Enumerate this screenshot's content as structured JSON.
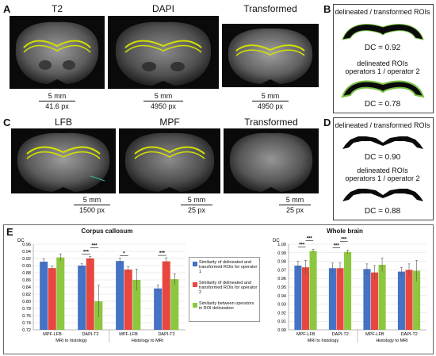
{
  "panels": {
    "A": {
      "label": "A",
      "images": [
        {
          "title": "T2",
          "scale_mm": "5 mm",
          "scale_px": "41.6 px"
        },
        {
          "title": "DAPI",
          "scale_mm": "5 mm",
          "scale_px": "4950 px"
        },
        {
          "title": "Transformed",
          "scale_mm": "5 mm",
          "scale_px": "4950 px"
        }
      ]
    },
    "B": {
      "label": "B",
      "text1": "delineated / transformed ROIs",
      "dc1": "DC = 0.92",
      "text2a": "delineated ROIs",
      "text2b": "operators 1 / operator 2",
      "dc2": "DC = 0.78"
    },
    "C": {
      "label": "C",
      "images": [
        {
          "title": "LFB",
          "scale_mm": "5 mm",
          "scale_px": "1500 px"
        },
        {
          "title": "MPF",
          "scale_mm": "5 mm",
          "scale_px": "25 px"
        },
        {
          "title": "Transformed",
          "scale_mm": "5 mm",
          "scale_px": "25 px"
        }
      ]
    },
    "D": {
      "label": "D",
      "text1": "delineated / transformed ROIs",
      "dc1": "DC = 0.90",
      "text2a": "delineated ROIs",
      "text2b": "operators 1 / operator 2",
      "dc2": "DC = 0.88"
    },
    "E": {
      "label": "E",
      "legend": [
        {
          "text": "Similarity of delineated and transformed ROIs for operator 1",
          "color": "#4472c4"
        },
        {
          "text": "Similarity of delineated and transformed ROIs for operator 2",
          "color": "#e8473f"
        },
        {
          "text": "Similarity between operators in ROI delineation",
          "color": "#8dc63f"
        }
      ]
    }
  },
  "chart_data": [
    {
      "type": "bar",
      "title": "Corpus callosum",
      "ylabel": "DC",
      "ylim": [
        0.72,
        0.96
      ],
      "yticks": [
        "0.72",
        "0.74",
        "0.76",
        "0.78",
        "0.80",
        "0.82",
        "0.84",
        "0.86",
        "0.88",
        "0.90",
        "0.92",
        "0.94",
        "0.96"
      ],
      "categories": [
        "MPF-LFB",
        "DAPI-T2",
        "MPF-LFB",
        "DAPI-T2"
      ],
      "groups": [
        "MRI to histology",
        "Histology to MRI"
      ],
      "series": [
        {
          "values": [
            0.911,
            0.9,
            0.913,
            0.836
          ],
          "errors": [
            0.008,
            0.005,
            0.008,
            0.01
          ]
        },
        {
          "values": [
            0.893,
            0.92,
            0.889,
            0.912
          ],
          "errors": [
            0.006,
            0.006,
            0.008,
            0.01
          ]
        },
        {
          "values": [
            0.923,
            0.8,
            0.86,
            0.862
          ],
          "errors": [
            0.01,
            0.045,
            0.03,
            0.015
          ]
        }
      ],
      "significance": [
        {
          "category": 1,
          "from": 0,
          "to": 1,
          "label": "***"
        },
        {
          "category": 1,
          "from": 1,
          "to": 2,
          "label": "***"
        },
        {
          "category": 2,
          "from": 0,
          "to": 1,
          "label": "*"
        },
        {
          "category": 3,
          "from": 0,
          "to": 1,
          "label": "***"
        }
      ]
    },
    {
      "type": "bar",
      "title": "Whole brain",
      "ylabel": "DC",
      "ylim": [
        0.9,
        1.0
      ],
      "yticks": [
        "0.90",
        "0.91",
        "0.92",
        "0.93",
        "0.94",
        "0.95",
        "0.96",
        "0.97",
        "0.98",
        "0.99",
        "1.00"
      ],
      "categories": [
        "MPF-LFB",
        "DAPI-T2",
        "MPF-LFB",
        "DAPI-T2"
      ],
      "groups": [
        "MRI to histology",
        "Histology to MRI"
      ],
      "series": [
        {
          "values": [
            0.975,
            0.972,
            0.971,
            0.968
          ],
          "errors": [
            0.005,
            0.006,
            0.006,
            0.005
          ]
        },
        {
          "values": [
            0.973,
            0.972,
            0.967,
            0.97
          ],
          "errors": [
            0.008,
            0.006,
            0.008,
            0.007
          ]
        },
        {
          "values": [
            0.992,
            0.991,
            0.976,
            0.969
          ],
          "errors": [
            0.002,
            0.002,
            0.008,
            0.012
          ]
        }
      ],
      "significance": [
        {
          "category": 0,
          "from": 0,
          "to": 1,
          "label": "***"
        },
        {
          "category": 0,
          "from": 1,
          "to": 2,
          "label": "***"
        },
        {
          "category": 1,
          "from": 0,
          "to": 1,
          "label": "***"
        },
        {
          "category": 1,
          "from": 1,
          "to": 2,
          "label": "***"
        }
      ]
    }
  ]
}
